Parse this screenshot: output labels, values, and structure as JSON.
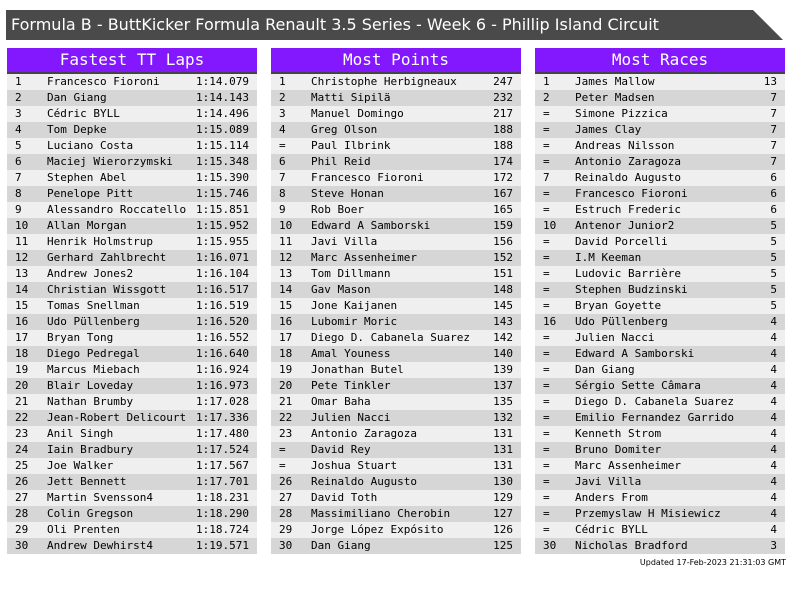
{
  "title": "Formula B - ButtKicker Formula Renault 3.5 Series - Week 6 - Phillip Island Circuit",
  "footer": "Updated 17-Feb-2023 21:31:03 GMT",
  "colors": {
    "header": "#8318ff",
    "title_bar": "#4a4a4a",
    "row_light": "#efefef",
    "row_dark": "#d6d6d6"
  },
  "panels": [
    {
      "title": "Fastest TT Laps",
      "rows": [
        [
          "1",
          "Francesco Fioroni",
          "1:14.079"
        ],
        [
          "2",
          "Dan Giang",
          "1:14.143"
        ],
        [
          "3",
          "Cédric BYLL",
          "1:14.496"
        ],
        [
          "4",
          "Tom Depke",
          "1:15.089"
        ],
        [
          "5",
          "Luciano Costa",
          "1:15.114"
        ],
        [
          "6",
          "Maciej Wierorzymski",
          "1:15.348"
        ],
        [
          "7",
          "Stephen Abel",
          "1:15.390"
        ],
        [
          "8",
          "Penelope Pitt",
          "1:15.746"
        ],
        [
          "9",
          "Alessandro Roccatello",
          "1:15.851"
        ],
        [
          "10",
          "Allan Morgan",
          "1:15.952"
        ],
        [
          "11",
          "Henrik Holmstrup",
          "1:15.955"
        ],
        [
          "12",
          "Gerhard Zahlbrecht",
          "1:16.071"
        ],
        [
          "13",
          "Andrew Jones2",
          "1:16.104"
        ],
        [
          "14",
          "Christian Wissgott",
          "1:16.517"
        ],
        [
          "15",
          "Tomas Snellman",
          "1:16.519"
        ],
        [
          "16",
          "Udo Püllenberg",
          "1:16.520"
        ],
        [
          "17",
          "Bryan Tong",
          "1:16.552"
        ],
        [
          "18",
          "Diego Pedregal",
          "1:16.640"
        ],
        [
          "19",
          "Marcus Miebach",
          "1:16.924"
        ],
        [
          "20",
          "Blair Loveday",
          "1:16.973"
        ],
        [
          "21",
          "Nathan Brumby",
          "1:17.028"
        ],
        [
          "22",
          "Jean-Robert Delicourt",
          "1:17.336"
        ],
        [
          "23",
          "Anil Singh",
          "1:17.480"
        ],
        [
          "24",
          "Iain Bradbury",
          "1:17.524"
        ],
        [
          "25",
          "Joe Walker",
          "1:17.567"
        ],
        [
          "26",
          "Jett Bennett",
          "1:17.701"
        ],
        [
          "27",
          "Martin Svensson4",
          "1:18.231"
        ],
        [
          "28",
          "Colin Gregson",
          "1:18.290"
        ],
        [
          "29",
          "Oli Prenten",
          "1:18.724"
        ],
        [
          "30",
          "Andrew Dewhirst4",
          "1:19.571"
        ]
      ]
    },
    {
      "title": "Most Points",
      "rows": [
        [
          "1",
          "Christophe Herbigneaux",
          "247"
        ],
        [
          "2",
          "Matti Sipilä",
          "232"
        ],
        [
          "3",
          "Manuel Domingo",
          "217"
        ],
        [
          "4",
          "Greg Olson",
          "188"
        ],
        [
          "=",
          "Paul Ilbrink",
          "188"
        ],
        [
          "6",
          "Phil Reid",
          "174"
        ],
        [
          "7",
          "Francesco Fioroni",
          "172"
        ],
        [
          "8",
          "Steve Honan",
          "167"
        ],
        [
          "9",
          "Rob Boer",
          "165"
        ],
        [
          "10",
          "Edward A Samborski",
          "159"
        ],
        [
          "11",
          "Javi Villa",
          "156"
        ],
        [
          "12",
          "Marc Assenheimer",
          "152"
        ],
        [
          "13",
          "Tom Dillmann",
          "151"
        ],
        [
          "14",
          "Gav Mason",
          "148"
        ],
        [
          "15",
          "Jone Kaijanen",
          "145"
        ],
        [
          "16",
          "Lubomir Moric",
          "143"
        ],
        [
          "17",
          "Diego D. Cabanela Suarez",
          "142"
        ],
        [
          "18",
          "Amal Youness",
          "140"
        ],
        [
          "19",
          "Jonathan Butel",
          "139"
        ],
        [
          "20",
          "Pete Tinkler",
          "137"
        ],
        [
          "21",
          "Omar Baha",
          "135"
        ],
        [
          "22",
          "Julien Nacci",
          "132"
        ],
        [
          "23",
          "Antonio Zaragoza",
          "131"
        ],
        [
          "=",
          "David Rey",
          "131"
        ],
        [
          "=",
          "Joshua Stuart",
          "131"
        ],
        [
          "26",
          "Reinaldo Augusto",
          "130"
        ],
        [
          "27",
          "David Toth",
          "129"
        ],
        [
          "28",
          "Massimiliano Cherobin",
          "127"
        ],
        [
          "29",
          "Jorge López Expósito",
          "126"
        ],
        [
          "30",
          "Dan Giang",
          "125"
        ]
      ]
    },
    {
      "title": "Most Races",
      "rows": [
        [
          "1",
          "James Mallow",
          "13"
        ],
        [
          "2",
          "Peter Madsen",
          "7"
        ],
        [
          "=",
          "Simone Pizzica",
          "7"
        ],
        [
          "=",
          "James Clay",
          "7"
        ],
        [
          "=",
          "Andreas Nilsson",
          "7"
        ],
        [
          "=",
          "Antonio Zaragoza",
          "7"
        ],
        [
          "7",
          "Reinaldo Augusto",
          "6"
        ],
        [
          "=",
          "Francesco Fioroni",
          "6"
        ],
        [
          "=",
          "Estruch Frederic",
          "6"
        ],
        [
          "10",
          "Antenor Junior2",
          "5"
        ],
        [
          "=",
          "David Porcelli",
          "5"
        ],
        [
          "=",
          "I.M Keeman",
          "5"
        ],
        [
          "=",
          "Ludovic Barrière",
          "5"
        ],
        [
          "=",
          "Stephen Budzinski",
          "5"
        ],
        [
          "=",
          "Bryan Goyette",
          "5"
        ],
        [
          "16",
          "Udo Püllenberg",
          "4"
        ],
        [
          "=",
          "Julien Nacci",
          "4"
        ],
        [
          "=",
          "Edward A Samborski",
          "4"
        ],
        [
          "=",
          "Dan Giang",
          "4"
        ],
        [
          "=",
          "Sérgio Sette Câmara",
          "4"
        ],
        [
          "=",
          "Diego D. Cabanela Suarez",
          "4"
        ],
        [
          "=",
          "Emilio Fernandez Garrido",
          "4"
        ],
        [
          "=",
          "Kenneth Strom",
          "4"
        ],
        [
          "=",
          "Bruno Domiter",
          "4"
        ],
        [
          "=",
          "Marc Assenheimer",
          "4"
        ],
        [
          "=",
          "Javi Villa",
          "4"
        ],
        [
          "=",
          "Anders From",
          "4"
        ],
        [
          "=",
          "Przemyslaw H Misiewicz",
          "4"
        ],
        [
          "=",
          "Cédric BYLL",
          "4"
        ],
        [
          "30",
          "Nicholas Bradford",
          "3"
        ]
      ]
    }
  ]
}
